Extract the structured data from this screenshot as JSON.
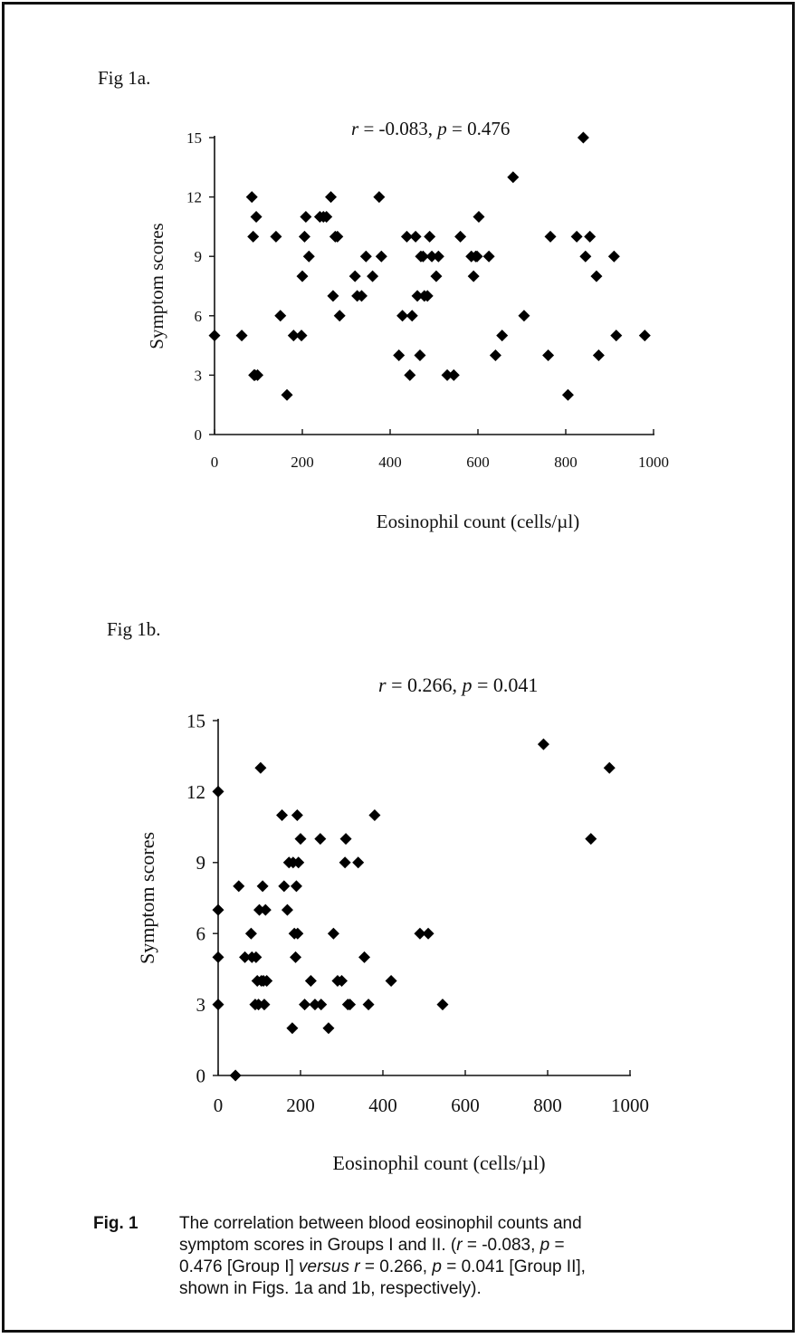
{
  "figure_a": {
    "label": "Fig 1a."
  },
  "figure_b": {
    "label": "Fig 1b."
  },
  "caption": {
    "label": "Fig. 1",
    "line1": "The correlation between blood eosinophil counts and",
    "line2_start": "symptom scores in Groups I and II.  (",
    "line2_r": "r",
    "line2_mid": " = -0.083, ",
    "line2_p": "p",
    "line2_end": " =",
    "line3_start": "0.476 [Group I] ",
    "line3_versus": "versus",
    "line3_sp": " ",
    "line3_r": "r",
    "line3_mid": " = 0.266, ",
    "line3_p": "p",
    "line3_end": " = 0.041 [Group II],",
    "line4": "shown in Figs. 1a and 1b, respectively)."
  },
  "chart_data": [
    {
      "type": "scatter",
      "title": "",
      "stat": {
        "r_label": "r",
        "r_text": " = -0.083, ",
        "p_label": "p",
        "p_text": " = 0.476"
      },
      "xlabel": "Eosinophil count (cells/µl)",
      "ylabel": "Symptom scores",
      "xlim": [
        0,
        1000
      ],
      "ylim": [
        0,
        15
      ],
      "xticks": [
        0,
        200,
        400,
        600,
        800,
        1000
      ],
      "yticks": [
        0,
        3,
        6,
        9,
        12,
        15
      ],
      "grid": false,
      "marker_color": "#000000",
      "x": [
        0,
        62,
        85,
        88,
        90,
        92,
        98,
        95,
        140,
        150,
        165,
        180,
        198,
        200,
        205,
        208,
        215,
        240,
        248,
        255,
        265,
        270,
        275,
        280,
        285,
        320,
        325,
        335,
        345,
        360,
        375,
        380,
        420,
        428,
        438,
        445,
        450,
        458,
        462,
        468,
        470,
        475,
        478,
        485,
        490,
        495,
        505,
        510,
        530,
        545,
        560,
        585,
        590,
        595,
        598,
        602,
        625,
        640,
        655,
        680,
        705,
        760,
        765,
        805,
        825,
        840,
        845,
        855,
        870,
        875,
        910,
        915,
        980
      ],
      "y": [
        5,
        5,
        12,
        10,
        3,
        3,
        3,
        11,
        10,
        6,
        2,
        5,
        5,
        8,
        10,
        11,
        9,
        11,
        11,
        11,
        12,
        7,
        10,
        10,
        6,
        8,
        7,
        7,
        9,
        8,
        12,
        9,
        4,
        6,
        10,
        3,
        6,
        10,
        7,
        4,
        9,
        9,
        7,
        7,
        10,
        9,
        8,
        9,
        3,
        3,
        10,
        9,
        8,
        9,
        9,
        11,
        9,
        4,
        5,
        13,
        6,
        4,
        10,
        2,
        10,
        15,
        9,
        10,
        8,
        4,
        9,
        5,
        5
      ]
    },
    {
      "type": "scatter",
      "title": "",
      "stat": {
        "r_label": "r",
        "r_text": " = 0.266, ",
        "p_label": "p",
        "p_text": " = 0.041"
      },
      "xlabel": "Eosinophil count (cells/µl)",
      "ylabel": "Symptom scores",
      "xlim": [
        0,
        1000
      ],
      "ylim": [
        0,
        15
      ],
      "xticks": [
        0,
        200,
        400,
        600,
        800,
        1000
      ],
      "yticks": [
        0,
        3,
        6,
        9,
        12,
        15
      ],
      "grid": false,
      "marker_color": "#000000",
      "x": [
        0,
        0,
        0,
        0,
        42,
        50,
        65,
        80,
        82,
        90,
        92,
        95,
        98,
        100,
        103,
        105,
        108,
        110,
        112,
        115,
        118,
        155,
        160,
        168,
        172,
        180,
        182,
        185,
        188,
        190,
        192,
        193,
        195,
        200,
        210,
        225,
        235,
        248,
        250,
        268,
        280,
        290,
        300,
        308,
        310,
        315,
        320,
        340,
        355,
        365,
        380,
        420,
        490,
        510,
        545,
        790,
        905,
        950
      ],
      "y": [
        12,
        7,
        5,
        3,
        0,
        8,
        5,
        6,
        5,
        3,
        5,
        4,
        3,
        7,
        13,
        4,
        8,
        4,
        3,
        7,
        4,
        11,
        8,
        7,
        9,
        2,
        9,
        6,
        5,
        8,
        11,
        6,
        9,
        10,
        3,
        4,
        3,
        10,
        3,
        2,
        6,
        4,
        4,
        9,
        10,
        3,
        3,
        9,
        5,
        3,
        11,
        4,
        6,
        6,
        3,
        14,
        10,
        13
      ]
    }
  ]
}
